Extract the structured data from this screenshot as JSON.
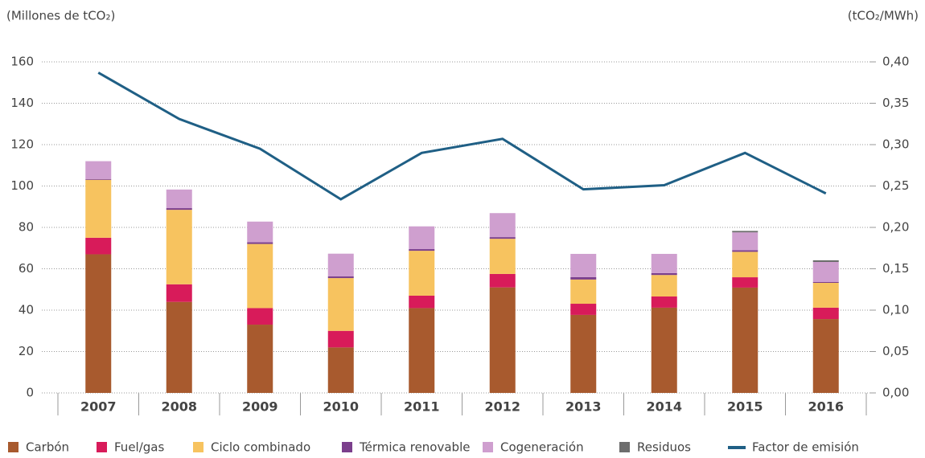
{
  "chart_data": {
    "type": "bar",
    "y_label": "(Millones de tCO₂)",
    "y2_label": "(tCO₂/MWh)",
    "categories": [
      "2007",
      "2008",
      "2009",
      "2010",
      "2011",
      "2012",
      "2013",
      "2014",
      "2015",
      "2016"
    ],
    "ylim": [
      0,
      160
    ],
    "yticks": [
      0,
      20,
      40,
      60,
      80,
      100,
      120,
      140,
      160
    ],
    "y2lim": [
      0,
      0.4
    ],
    "y2ticks": [
      {
        "value": 0,
        "label": "0,00"
      },
      {
        "value": 0.05,
        "label": "0,05"
      },
      {
        "value": 0.1,
        "label": "0,10"
      },
      {
        "value": 0.15,
        "label": "0,15"
      },
      {
        "value": 0.2,
        "label": "0,20"
      },
      {
        "value": 0.25,
        "label": "0,25"
      },
      {
        "value": 0.3,
        "label": "0,30"
      },
      {
        "value": 0.35,
        "label": "0,35"
      },
      {
        "value": 0.4,
        "label": "0,40"
      }
    ],
    "grid": true,
    "stacked": true,
    "legend": "bottom",
    "series": [
      {
        "name": "Carbón",
        "color": "#a85a2e",
        "values": [
          67,
          44,
          33,
          22,
          41,
          51,
          37.7,
          41.2,
          50.9,
          35.7
        ]
      },
      {
        "name": "Fuel/gas",
        "color": "#d81b5a",
        "values": [
          8,
          8.5,
          8,
          8,
          6,
          6.5,
          5.4,
          5.4,
          5,
          5.5
        ]
      },
      {
        "name": "Ciclo combinado",
        "color": "#f7c35f",
        "values": [
          28,
          36,
          31,
          25.5,
          21.7,
          17,
          11.7,
          10.4,
          12.3,
          12
        ]
      },
      {
        "name": "Térmica renovable",
        "color": "#7b3f8c",
        "values": [
          0.3,
          0.8,
          0.8,
          0.8,
          0.8,
          0.8,
          1.2,
          0.9,
          0.8,
          0.4
        ]
      },
      {
        "name": "Cogeneración",
        "color": "#cf9fcf",
        "values": [
          8.7,
          9,
          10,
          11,
          11,
          11.6,
          11.2,
          9.3,
          8.6,
          9.7
        ]
      },
      {
        "name": "Residuos",
        "color": "#6d6d6d",
        "values": [
          0,
          0,
          0,
          0,
          0,
          0,
          0,
          0,
          0.7,
          0.8
        ]
      },
      {
        "name": "Factor de emisión",
        "color": "#1f5f85",
        "type": "line",
        "axis": "y2",
        "values": [
          0.387,
          0.331,
          0.295,
          0.234,
          0.29,
          0.307,
          0.246,
          0.251,
          0.29,
          0.241
        ]
      }
    ]
  }
}
